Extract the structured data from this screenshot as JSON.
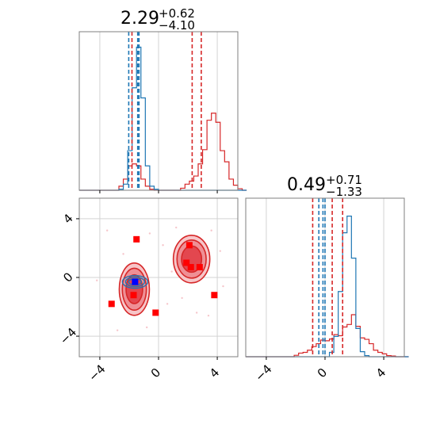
{
  "chart_data": {
    "type": "corner",
    "titles": [
      {
        "value": "2.29",
        "plus": "+0.62",
        "minus": "−4.10"
      },
      {
        "value": "0.49",
        "plus": "+0.71",
        "minus": "−1.33"
      }
    ],
    "x_range": [
      -5.4,
      5.4
    ],
    "y_range": [
      -5.4,
      5.4
    ],
    "ticks": [
      -4,
      0,
      4
    ],
    "tick_labels": [
      "−4",
      "0",
      "4"
    ],
    "grid": true,
    "colors": {
      "red": "#d62728",
      "blue": "#1f77b4",
      "marker_red": "#ff0000",
      "marker_blue": "#0000ff"
    },
    "hist_x": {
      "bin_edges_start": -5.4,
      "bin_width": 0.3,
      "red": [
        0,
        0,
        0,
        0,
        0,
        0,
        0,
        0,
        0,
        0.8,
        2.2,
        4.8,
        5.2,
        4.8,
        2.2,
        0.8,
        0.2,
        0,
        0,
        0,
        0,
        0,
        0,
        0.4,
        1.2,
        1.8,
        2.8,
        5.2,
        8,
        13.8,
        15.2,
        13.4,
        7.8,
        5.6,
        2.2,
        1,
        0.3,
        0
      ],
      "blue": [
        0,
        0,
        0,
        0,
        0,
        0,
        0,
        0,
        0,
        0.2,
        1.2,
        7.8,
        20.2,
        28.2,
        18.2,
        4.8,
        0.8,
        0.2,
        0,
        0,
        0,
        0,
        0,
        0,
        0,
        0,
        0,
        0,
        0,
        0,
        0,
        0,
        0,
        0,
        0,
        0,
        0,
        0
      ],
      "red_quantiles": [
        -1.81,
        2.29,
        2.91
      ],
      "blue_quantiles": [
        -2.03,
        -1.42,
        -1.33
      ],
      "ymax": 30
    },
    "hist_y": {
      "bin_edges_start": -5.4,
      "bin_width": 0.3,
      "red": [
        0,
        0,
        0,
        0,
        0,
        0,
        0,
        0,
        0,
        0,
        0,
        0.4,
        1,
        1.2,
        1.8,
        2.8,
        3.6,
        4.6,
        4.4,
        4.9,
        6.1,
        5.8,
        8.2,
        8.9,
        11.6,
        8.4,
        5.2,
        4.8,
        3.6,
        1.8,
        1.2,
        0.8,
        0.3,
        0.2,
        0,
        0,
        0
      ],
      "blue": [
        0,
        0,
        0,
        0,
        0,
        0,
        0,
        0,
        0,
        0,
        0,
        0,
        0,
        0,
        0,
        0,
        0,
        0,
        0,
        1.2,
        5.6,
        18,
        34.2,
        38.8,
        27.2,
        7.8,
        1.4,
        0.3,
        0,
        0,
        0,
        0,
        0,
        0,
        0,
        0,
        0
      ],
      "red_quantiles": [
        -0.84,
        0.49,
        1.2
      ],
      "blue_quantiles": [
        -0.42,
        -0.14,
        0.0
      ],
      "ymax": 42
    },
    "points_2d": {
      "red_markers": [
        [
          -1.5,
          2.6
        ],
        [
          -3.2,
          -1.8
        ],
        [
          -1.7,
          -1.2
        ],
        [
          -0.2,
          -2.4
        ],
        [
          1.9,
          1.0
        ],
        [
          2.1,
          2.2
        ],
        [
          2.2,
          0.7
        ],
        [
          2.8,
          0.7
        ],
        [
          3.8,
          -1.2
        ]
      ],
      "blue_markers": [
        [
          -1.6,
          -0.3
        ]
      ]
    }
  }
}
